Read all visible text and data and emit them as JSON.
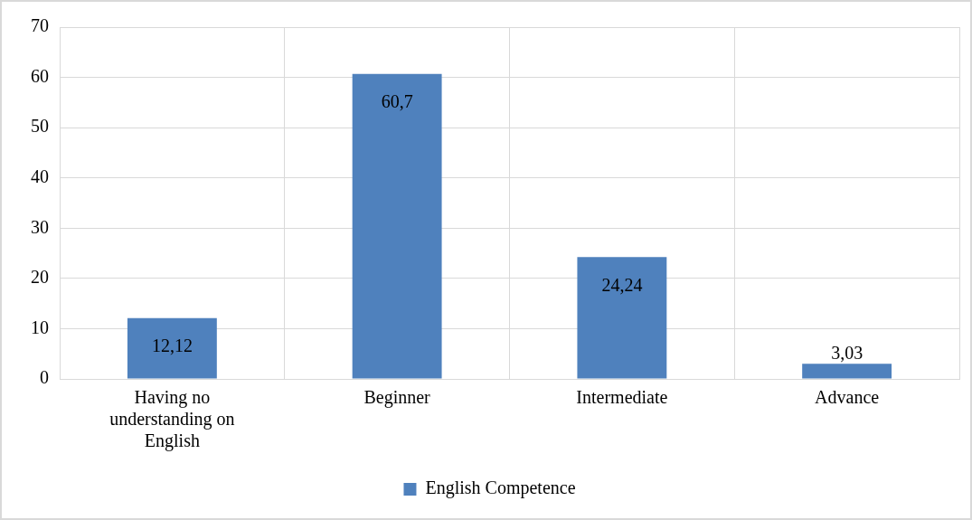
{
  "chart_data": {
    "type": "bar",
    "categories": [
      "Having no understanding on English",
      "Beginner",
      "Intermediate",
      "Advance"
    ],
    "series": [
      {
        "name": "English Competence",
        "color": "#4f81bd",
        "values": [
          12.12,
          60.7,
          24.24,
          3.03
        ],
        "value_labels": [
          "12,12",
          "60,7",
          "24,24",
          "3,03"
        ]
      }
    ],
    "ylim": [
      0,
      70
    ],
    "yticks": [
      0,
      10,
      20,
      30,
      40,
      50,
      60,
      70
    ],
    "grid": true,
    "legend": "bottom"
  }
}
